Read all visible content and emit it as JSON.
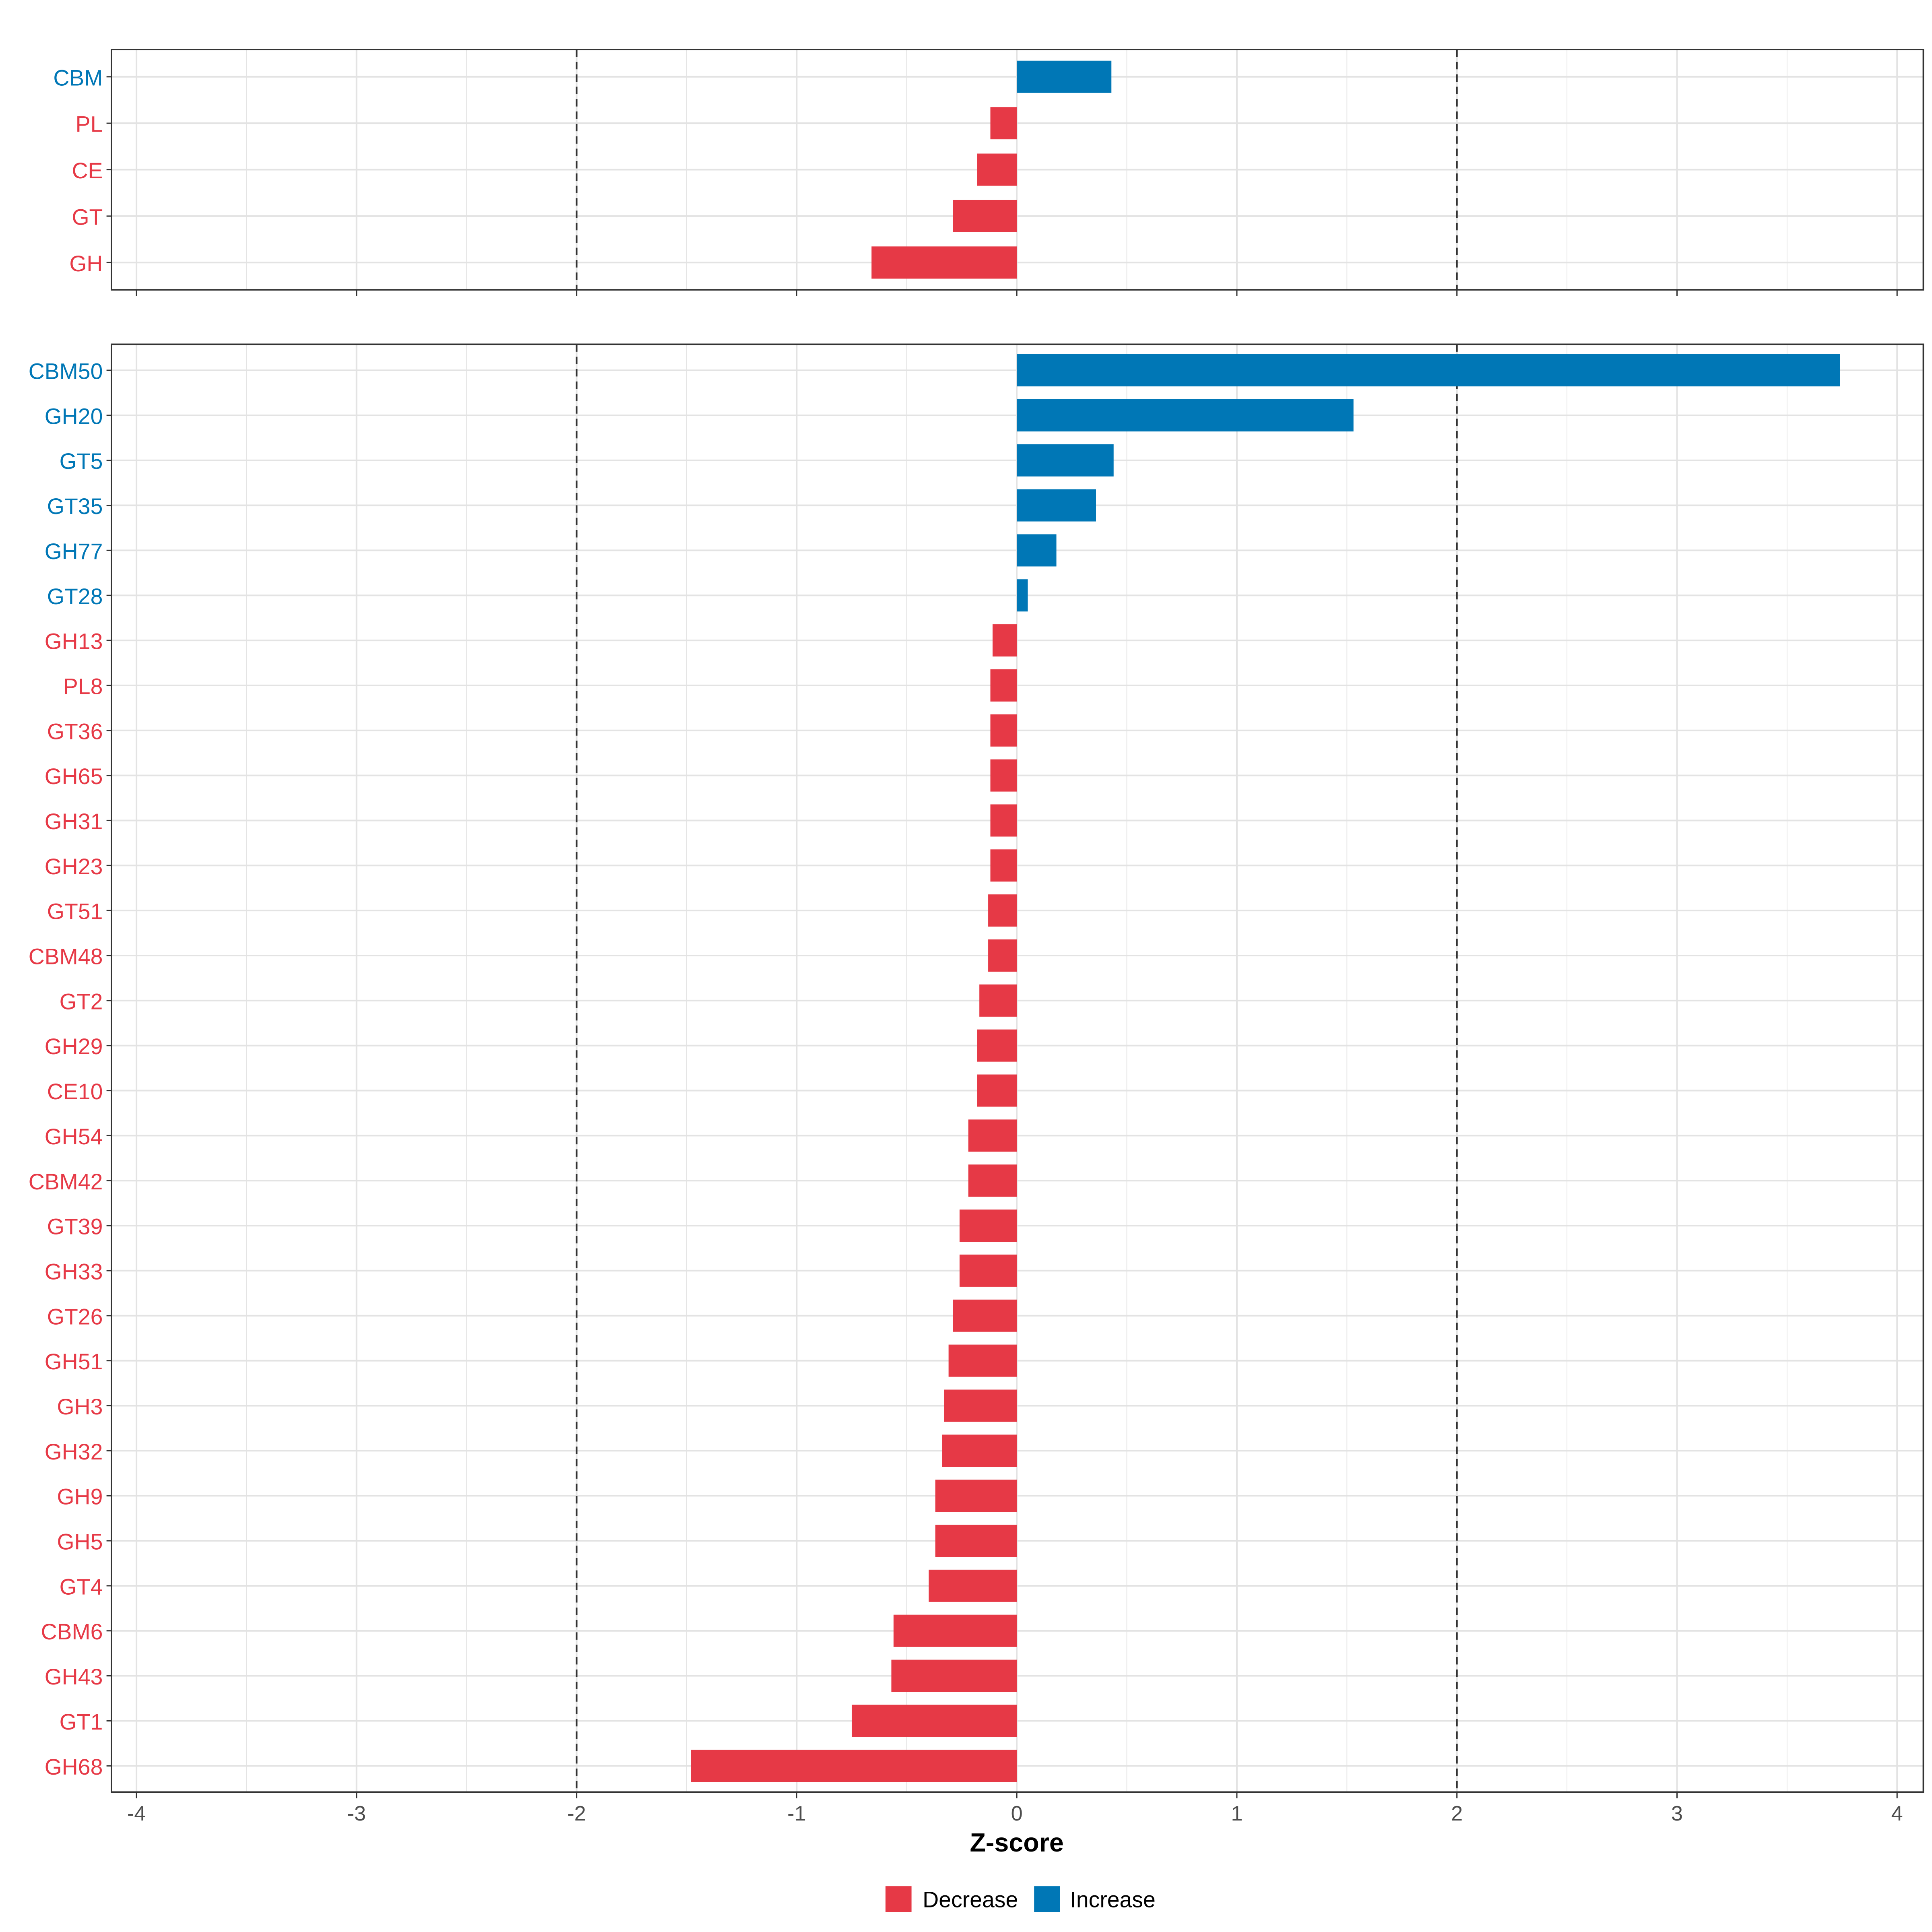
{
  "chart_data": [
    {
      "type": "bar",
      "orientation": "horizontal",
      "panel": "top",
      "categories": [
        "CBM",
        "PL",
        "CE",
        "GT",
        "GH"
      ],
      "values": [
        0.43,
        -0.12,
        -0.18,
        -0.29,
        -0.66
      ],
      "xlim": [
        -4.1,
        4.1
      ],
      "reference_lines": [
        -2,
        2
      ],
      "grid": true
    },
    {
      "type": "bar",
      "orientation": "horizontal",
      "panel": "bottom",
      "categories": [
        "CBM50",
        "GH20",
        "GT5",
        "GT35",
        "GH77",
        "GT28",
        "GH13",
        "PL8",
        "GT36",
        "GH65",
        "GH31",
        "GH23",
        "GT51",
        "CBM48",
        "GT2",
        "GH29",
        "CE10",
        "GH54",
        "CBM42",
        "GT39",
        "GH33",
        "GT26",
        "GH51",
        "GH3",
        "GH32",
        "GH9",
        "GH5",
        "GT4",
        "CBM6",
        "GH43",
        "GT1",
        "GH68"
      ],
      "values": [
        3.74,
        1.53,
        0.44,
        0.36,
        0.18,
        0.05,
        -0.11,
        -0.12,
        -0.12,
        -0.12,
        -0.12,
        -0.12,
        -0.13,
        -0.13,
        -0.17,
        -0.18,
        -0.18,
        -0.22,
        -0.22,
        -0.26,
        -0.26,
        -0.29,
        -0.31,
        -0.33,
        -0.34,
        -0.37,
        -0.37,
        -0.4,
        -0.56,
        -0.57,
        -0.75,
        -1.48
      ],
      "xlim": [
        -4.1,
        4.1
      ],
      "xticks": [
        "-4",
        "-3",
        "-2",
        "-1",
        "0",
        "1",
        "2",
        "3",
        "4"
      ],
      "xlabel": "Z-score",
      "reference_lines": [
        -2,
        2
      ],
      "grid": true
    }
  ],
  "legend": {
    "position": "bottom",
    "items": [
      {
        "label": "Decrease",
        "color": "#E63946"
      },
      {
        "label": "Increase",
        "color": "#0077B6"
      }
    ]
  }
}
